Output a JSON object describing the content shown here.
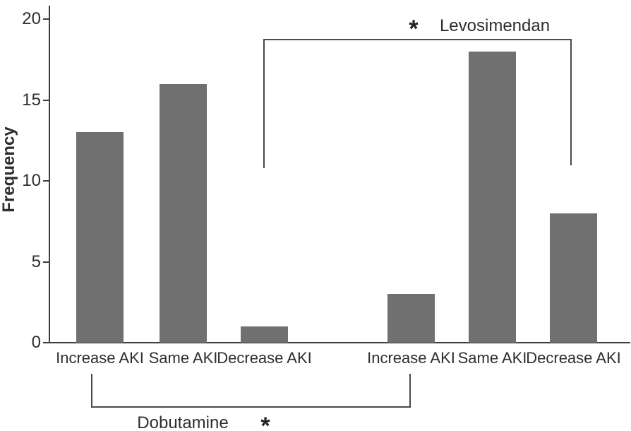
{
  "figure": {
    "background": "#ffffff",
    "bar_color": "#707070",
    "axis_color": "#3d3d3d",
    "bracket_color": "#4a4a4a",
    "text_color": "#2e2e2e"
  },
  "chart_data": {
    "type": "bar",
    "title": "",
    "xlabel": "",
    "ylabel": "Frequency",
    "ylim": [
      0,
      20
    ],
    "yticks": [
      0,
      5,
      10,
      15,
      20
    ],
    "grid": false,
    "legend_position": "none",
    "bar_color": "#707070",
    "categories": [
      "Increase AKI",
      "Same AKI",
      "Decrease AKI",
      "Increase AKI",
      "Same AKI",
      "Decrease AKI"
    ],
    "values": [
      13,
      16,
      1,
      3,
      18,
      8
    ],
    "series": [
      {
        "name": "Dobutamine",
        "categories": [
          "Increase AKI",
          "Same AKI",
          "Decrease AKI"
        ],
        "values": [
          13,
          16,
          1
        ]
      },
      {
        "name": "Levosimendan",
        "categories": [
          "Increase AKI",
          "Same AKI",
          "Decrease AKI"
        ],
        "values": [
          3,
          18,
          8
        ]
      }
    ],
    "annotations": [
      {
        "position": "top",
        "symbol": "*",
        "label": "Levosimendan",
        "spans_bars": [
          "Decrease AKI (group 1)",
          "Decrease AKI (group 2)"
        ]
      },
      {
        "position": "bottom",
        "symbol": "*",
        "label": "Dobutamine",
        "spans_bars": [
          "Increase AKI (group 1)",
          "Increase AKI (group 2)"
        ]
      }
    ]
  }
}
